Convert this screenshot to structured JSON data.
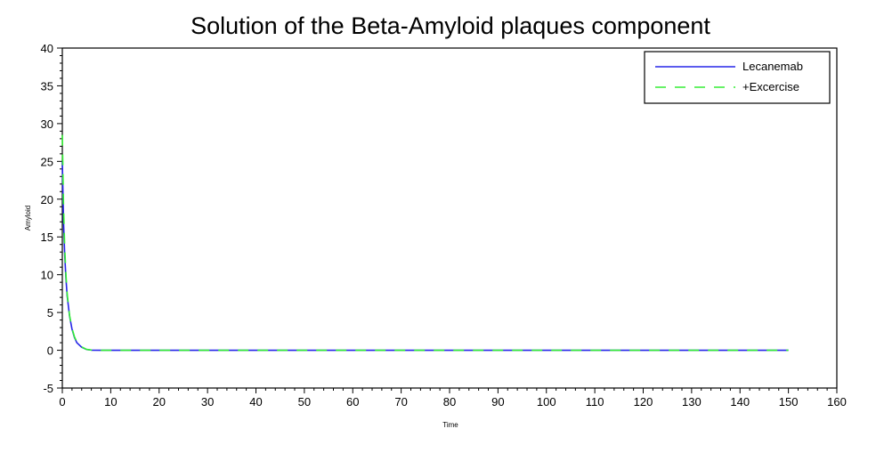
{
  "chart_data": {
    "type": "line",
    "title": "Solution of the Beta-Amyloid plaques component",
    "xlabel": "Time",
    "ylabel": "Amyloid",
    "xlim": [
      0,
      160
    ],
    "ylim": [
      -5,
      40
    ],
    "xticks": [
      "0",
      "10",
      "20",
      "30",
      "40",
      "50",
      "60",
      "70",
      "80",
      "90",
      "100",
      "110",
      "120",
      "130",
      "140",
      "150",
      "160"
    ],
    "yticks": [
      "-5",
      "0",
      "5",
      "10",
      "15",
      "20",
      "25",
      "30",
      "35",
      "40"
    ],
    "grid": false,
    "legend_position": "top-right",
    "series": [
      {
        "name": "Lecanemab",
        "color": "#2525e8",
        "style": "solid",
        "x": [
          0,
          0.25,
          0.5,
          0.75,
          1,
          1.5,
          2,
          2.5,
          3,
          4,
          5,
          6,
          8,
          10,
          20,
          40,
          60,
          80,
          100,
          120,
          140,
          150
        ],
        "y": [
          25,
          17,
          12.5,
          9.5,
          7.2,
          4.5,
          2.8,
          1.7,
          1.0,
          0.4,
          0.1,
          0.02,
          0,
          0,
          0,
          0,
          0,
          0,
          0,
          0,
          0,
          0
        ]
      },
      {
        "name": "+Excercise",
        "color": "#33ee33",
        "style": "dashed",
        "x": [
          0,
          0.25,
          0.5,
          0.75,
          1,
          1.5,
          2,
          2.5,
          3,
          4,
          5,
          6,
          8,
          10,
          20,
          40,
          60,
          80,
          100,
          120,
          140,
          150
        ],
        "y": [
          28.5,
          19,
          13.5,
          10,
          7.5,
          4.6,
          2.9,
          1.8,
          1.1,
          0.45,
          0.12,
          0.03,
          0,
          0,
          0,
          0,
          0,
          0,
          0,
          0,
          0,
          0
        ]
      }
    ]
  }
}
